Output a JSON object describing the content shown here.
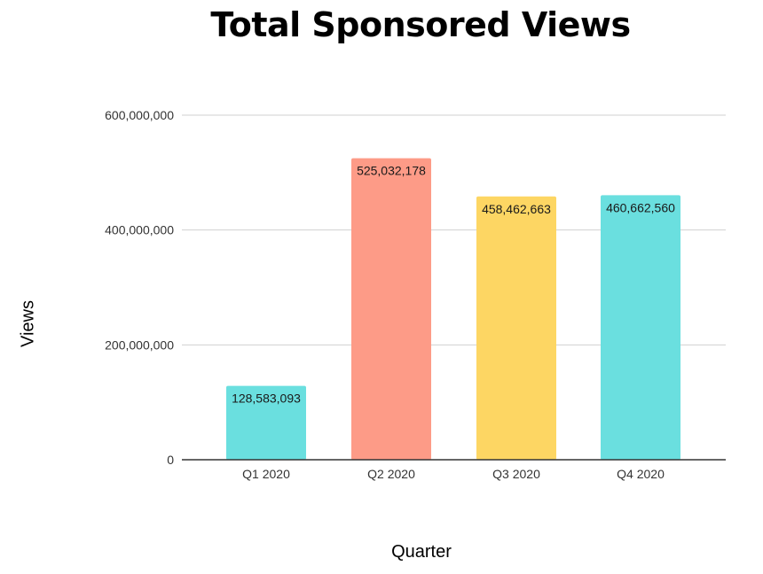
{
  "chart_data": {
    "type": "bar",
    "title": "Total Sponsored Views",
    "xlabel": "Quarter",
    "ylabel": "Views",
    "categories": [
      "Q1 2020",
      "Q2 2020",
      "Q3 2020",
      "Q4 2020"
    ],
    "values": [
      128583093,
      525032178,
      458462663,
      460662560
    ],
    "value_labels": [
      "128,583,093",
      "525,032,178",
      "458,462,663",
      "460,662,560"
    ],
    "bar_colors": [
      "#6adfdf",
      "#fd9b87",
      "#fdd663",
      "#6adfdf"
    ],
    "ylim": [
      0,
      600000000
    ],
    "yticks": [
      0,
      200000000,
      400000000,
      600000000
    ],
    "ytick_labels": [
      "0",
      "200,000,000",
      "400,000,000",
      "600,000,000"
    ],
    "grid": true,
    "legend": "none"
  }
}
